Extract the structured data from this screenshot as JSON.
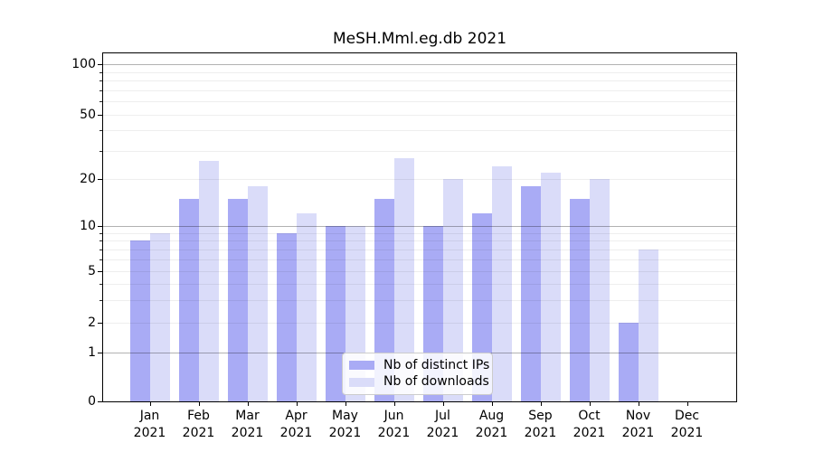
{
  "chart_data": {
    "type": "bar",
    "title": "MeSH.Mml.eg.db 2021",
    "year": "2021",
    "categories": [
      "Jan",
      "Feb",
      "Mar",
      "Apr",
      "May",
      "Jun",
      "Jul",
      "Aug",
      "Sep",
      "Oct",
      "Nov",
      "Dec"
    ],
    "series": [
      {
        "name": "Nb of distinct IPs",
        "color": "#a9abf5",
        "values": [
          8,
          15,
          15,
          9,
          10,
          15,
          10,
          12,
          18,
          15,
          2,
          0
        ]
      },
      {
        "name": "Nb of downloads",
        "color": "#dadcf9",
        "values": [
          9,
          26,
          18,
          12,
          10,
          27,
          20,
          24,
          22,
          20,
          7,
          0
        ]
      }
    ],
    "xlabel": "",
    "ylabel": "",
    "yscale": "log-like with zero baseline",
    "yticks": [
      0,
      1,
      2,
      5,
      10,
      20,
      50,
      100
    ],
    "ylim": [
      0,
      110
    ],
    "grid": true,
    "grid_over_bars": true,
    "legend_position": "lower center"
  },
  "colors": {
    "ips_bar": "#a9abf5",
    "downloads_bar": "#dadcf9",
    "grid_major": "#b3b3b3",
    "grid_minor": "#ededed",
    "axis": "#000000",
    "background": "#ffffff"
  }
}
